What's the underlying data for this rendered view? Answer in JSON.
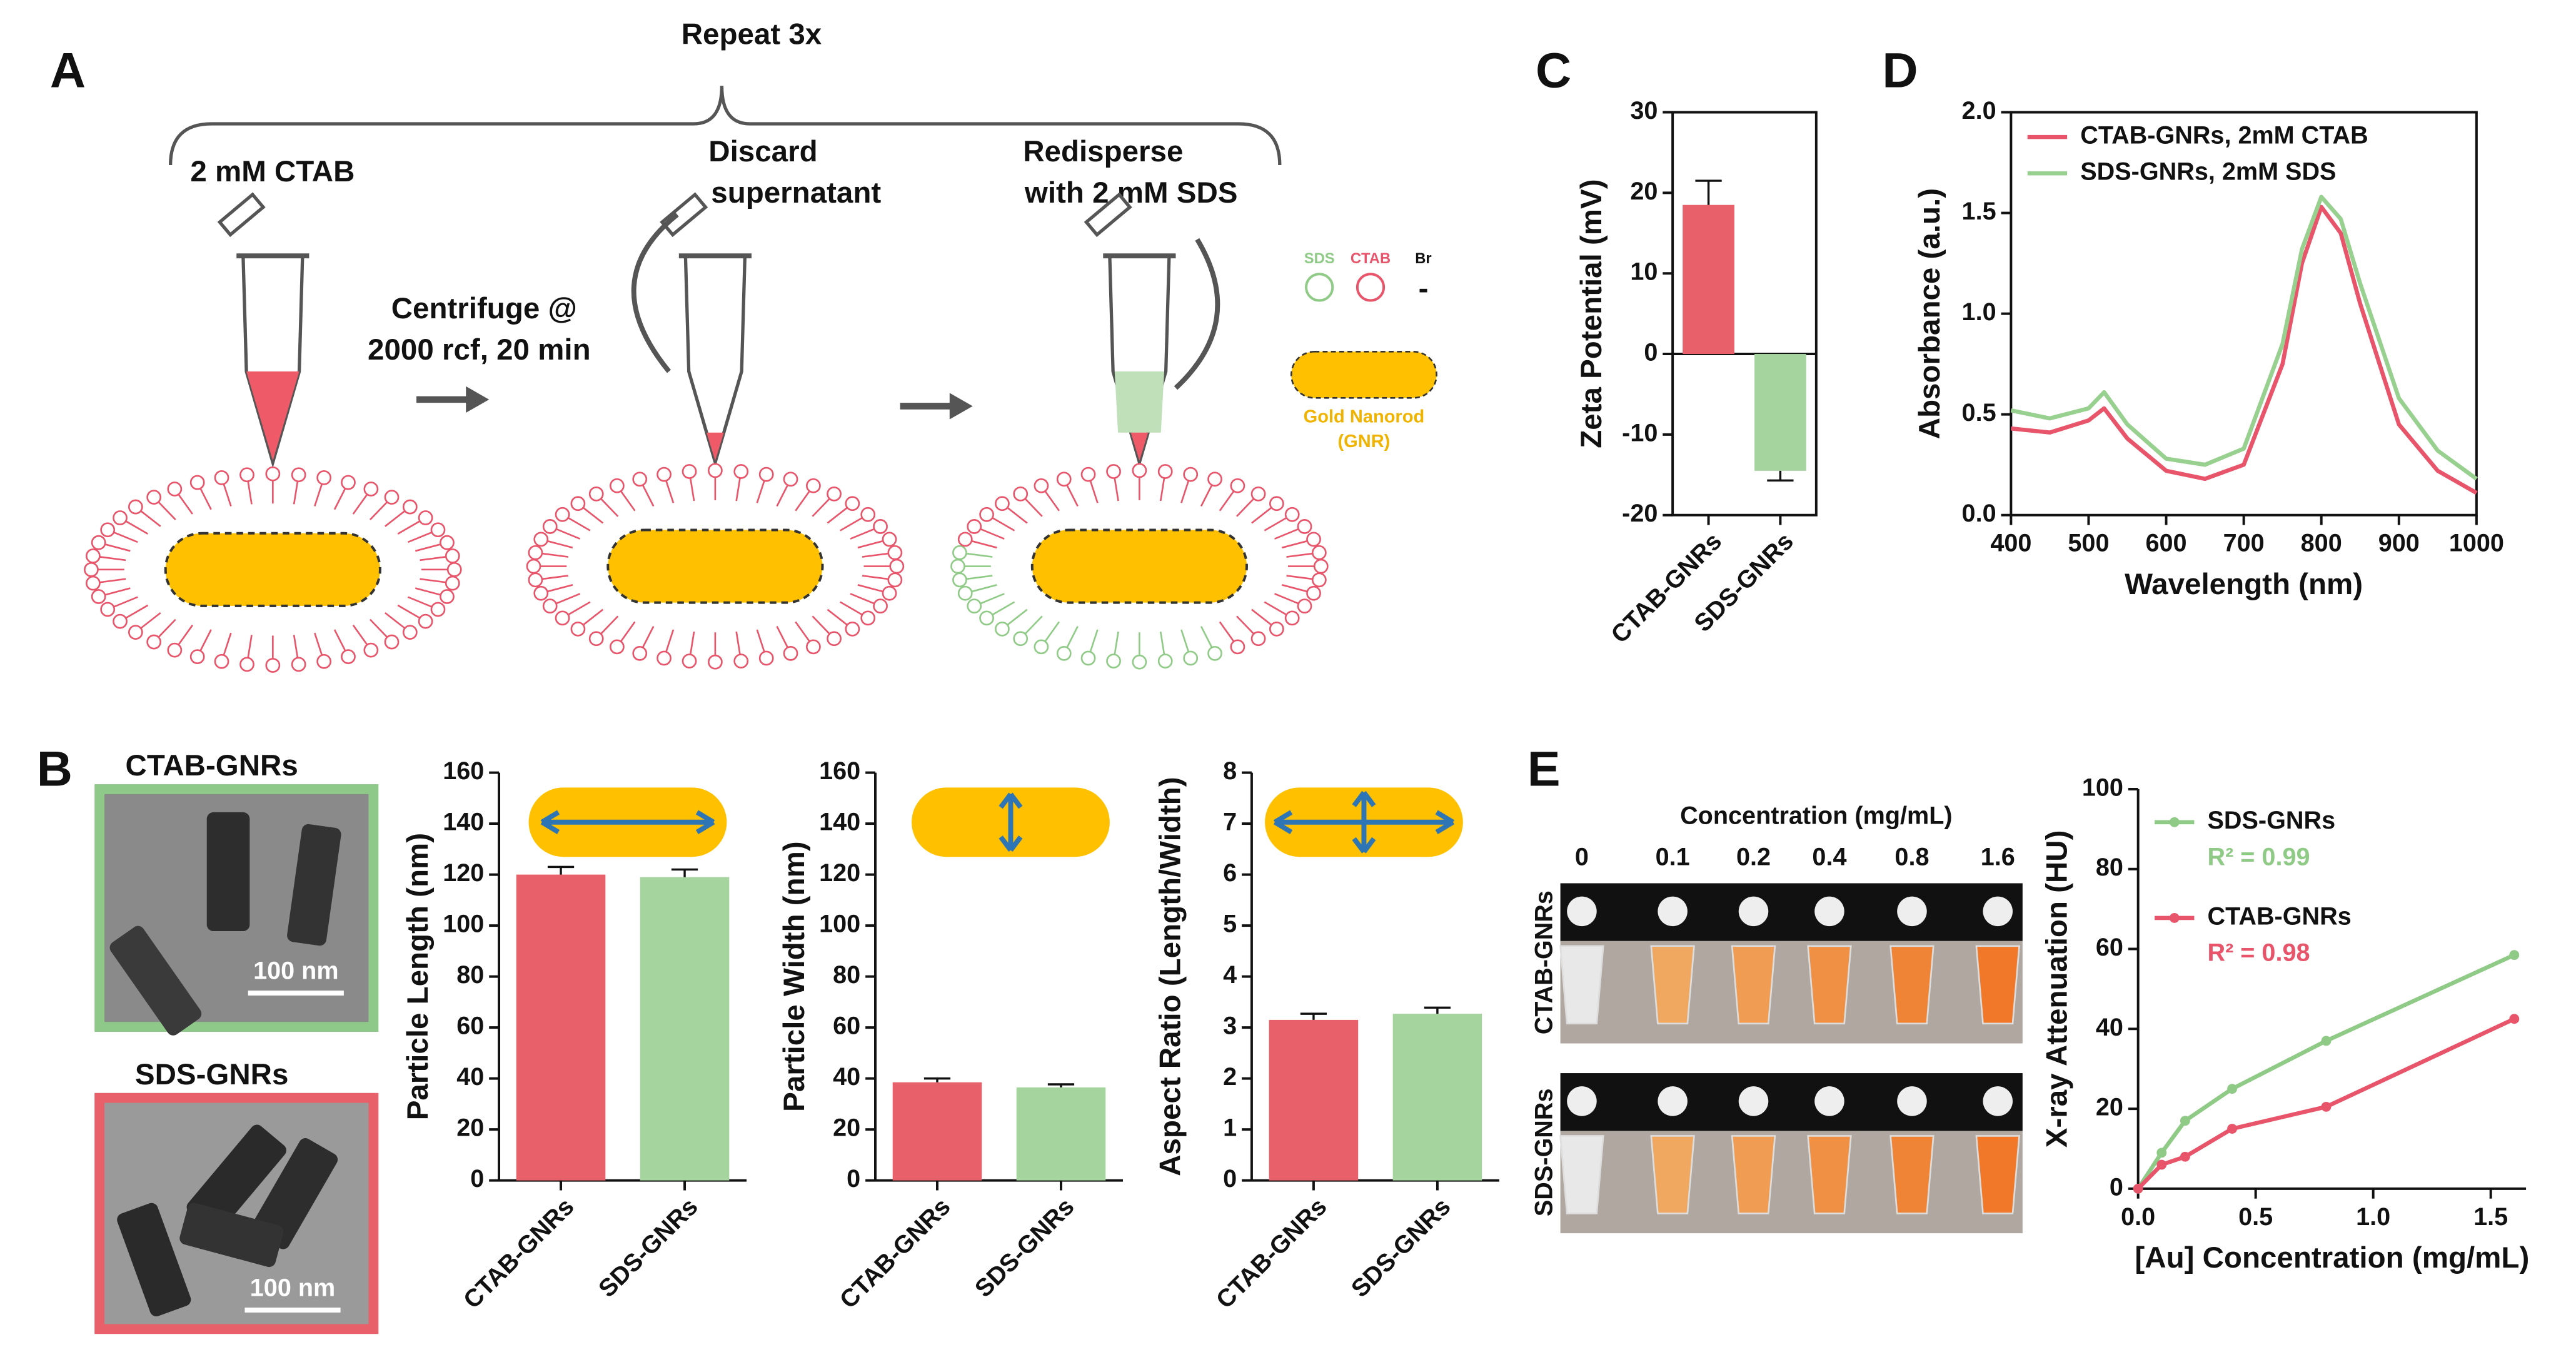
{
  "panels": [
    "A",
    "B",
    "C",
    "D",
    "E"
  ],
  "schematic": {
    "repeat": "Repeat 3x",
    "step1": "2 mM CTAB",
    "centrifuge": [
      "Centrifuge @",
      "2000 rcf, 20 min"
    ],
    "discard": [
      "Discard",
      "supernatant"
    ],
    "redisperse": [
      "Redisperse",
      "with 2 mM SDS"
    ],
    "legend": {
      "sds": "SDS",
      "ctab": "CTAB",
      "br": "Br",
      "minus": "-",
      "rod": [
        "Gold Nanorod",
        "(GNR)"
      ]
    }
  },
  "tem": [
    {
      "label": "CTAB-GNRs",
      "scale": "100 nm"
    },
    {
      "label": "SDS-GNRs",
      "scale": "100 nm"
    }
  ],
  "photo": {
    "title": "Concentration (mg/mL)",
    "columns": [
      "0",
      "0.1",
      "0.2",
      "0.4",
      "0.8",
      "1.6"
    ],
    "rows": [
      "CTAB-GNRs",
      "SDS-GNRs"
    ]
  },
  "chart_data": [
    {
      "type": "bar",
      "ylabel": "Zeta Potential (mV)",
      "categories": [
        "CTAB-GNRs",
        "SDS-GNRs"
      ],
      "values": [
        18.5,
        -14.5
      ],
      "errors": [
        3,
        1.2
      ],
      "colors": [
        "#e8606a",
        "#a6d49f"
      ],
      "ylim": [
        -20,
        30
      ],
      "yticks": [
        -20,
        -10,
        0,
        10,
        20,
        30
      ]
    },
    {
      "type": "line",
      "xlabel": "Wavelength (nm)",
      "ylabel": "Absorbance (a.u.)",
      "x": [
        400,
        450,
        500,
        520,
        550,
        600,
        650,
        700,
        750,
        775,
        800,
        825,
        850,
        900,
        950,
        1000
      ],
      "series": [
        {
          "name": "CTAB-GNRs, 2mM CTAB",
          "color": "#e8546a",
          "values": [
            0.43,
            0.41,
            0.47,
            0.53,
            0.38,
            0.22,
            0.18,
            0.25,
            0.75,
            1.25,
            1.53,
            1.4,
            1.05,
            0.45,
            0.22,
            0.11
          ]
        },
        {
          "name": "SDS-GNRs, 2mM SDS",
          "color": "#98d08f",
          "values": [
            0.52,
            0.48,
            0.53,
            0.61,
            0.45,
            0.28,
            0.25,
            0.33,
            0.85,
            1.32,
            1.58,
            1.47,
            1.15,
            0.58,
            0.32,
            0.18
          ]
        }
      ],
      "xlim": [
        400,
        1000
      ],
      "xticks": [
        400,
        500,
        600,
        700,
        800,
        900,
        1000
      ],
      "ylim": [
        0,
        2
      ],
      "yticks": [
        {
          "value": 0,
          "label": "0.0"
        },
        {
          "value": 0.5,
          "label": "0.5"
        },
        {
          "value": 1,
          "label": "1.0"
        },
        {
          "value": 1.5,
          "label": "1.5"
        },
        {
          "value": 2,
          "label": "2.0"
        }
      ],
      "legend": "upper left"
    },
    {
      "type": "bar",
      "ylabel": "Particle Length (nm)",
      "categories": [
        "CTAB-GNRs",
        "SDS-GNRs"
      ],
      "values": [
        120,
        119
      ],
      "errors": [
        3,
        3
      ],
      "colors": [
        "#e8606a",
        "#a6d49f"
      ],
      "ylim": [
        0,
        160
      ],
      "yticks": [
        0,
        20,
        40,
        60,
        80,
        100,
        120,
        140,
        160
      ]
    },
    {
      "type": "bar",
      "ylabel": "Particle Width (nm)",
      "categories": [
        "CTAB-GNRs",
        "SDS-GNRs"
      ],
      "values": [
        38.5,
        36.5
      ],
      "errors": [
        1.5,
        1.2
      ],
      "colors": [
        "#e8606a",
        "#a6d49f"
      ],
      "ylim": [
        0,
        160
      ],
      "yticks": [
        0,
        20,
        40,
        60,
        80,
        100,
        120,
        140,
        160
      ]
    },
    {
      "type": "bar",
      "ylabel": "Aspect Ratio (Length/Width)",
      "categories": [
        "CTAB-GNRs",
        "SDS-GNRs"
      ],
      "values": [
        3.15,
        3.27
      ],
      "errors": [
        0.12,
        0.12
      ],
      "colors": [
        "#e8606a",
        "#a6d49f"
      ],
      "ylim": [
        0,
        8
      ],
      "yticks": [
        0,
        1,
        2,
        3,
        4,
        5,
        6,
        7,
        8
      ]
    },
    {
      "type": "scatter",
      "xlabel": "[Au] Concentration (mg/mL)",
      "ylabel": "X-ray Attenuation (HU)",
      "x": [
        0,
        0.1,
        0.2,
        0.4,
        0.8,
        1.6
      ],
      "series": [
        {
          "name": "SDS-GNRs",
          "note": "R² = 0.99",
          "color": "#8fcb86",
          "values": [
            0,
            9,
            17,
            25,
            37,
            58.5
          ]
        },
        {
          "name": "CTAB-GNRs",
          "note": "R² = 0.98",
          "color": "#e8546a",
          "values": [
            0,
            6,
            8,
            15,
            20.5,
            42.5
          ]
        }
      ],
      "xlim": [
        0,
        1.65
      ],
      "xticks": [
        {
          "value": 0,
          "label": "0.0"
        },
        {
          "value": 0.5,
          "label": "0.5"
        },
        {
          "value": 1,
          "label": "1.0"
        },
        {
          "value": 1.5,
          "label": "1.5"
        }
      ],
      "ylim": [
        0,
        100
      ],
      "yticks": [
        0,
        20,
        40,
        60,
        80,
        100
      ],
      "legend": "upper left"
    }
  ]
}
